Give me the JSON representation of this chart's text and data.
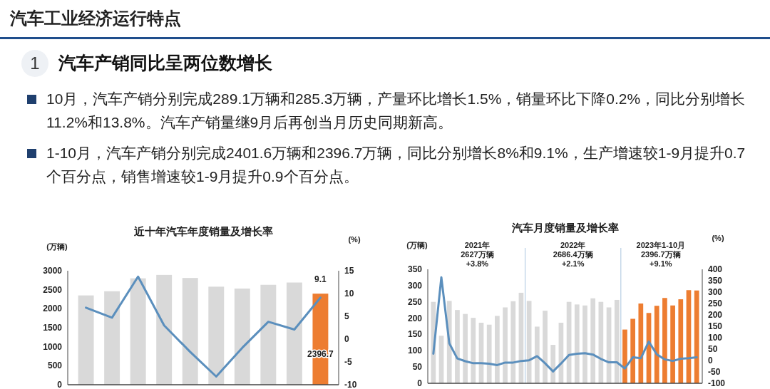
{
  "chart_data": [
    {
      "type": "bar",
      "title": "近十年汽车年度销量及增长率",
      "ylabel": "(万辆)",
      "y2label": "(%)",
      "annotations": [
        "汽车工业经济运行特点",
        "1",
        "汽车产销同比呈两位数增长",
        "10月，汽车产销分别完成289.1万辆和285.3万辆，产量环比增长1.5%，销量环比下降0.2%，同比分别增长11.2%和13.8%。汽车产销量继9月后再创当月历史同期新高。",
        "1-10月，汽车产销分别完成2401.6万辆和2396.7万辆，同比分别增长8%和9.1%，生产增速较1-9月提升0.7个百分点，销售增速较1-9月提升0.9个百分点。"
      ],
      "categories": [
        null,
        null,
        null,
        null,
        null,
        null,
        null,
        null,
        null,
        null
      ],
      "series": [
        {
          "colors": [
            "#d9d9d9",
            "#d9d9d9",
            "#d9d9d9",
            "#d9d9d9",
            "#d9d9d9",
            "#d9d9d9",
            "#d9d9d9",
            "#d9d9d9",
            "#d9d9d9",
            "#ed7d31"
          ],
          "values": [
            2350,
            2460,
            2800,
            2890,
            2810,
            2580,
            2530,
            2630,
            2690,
            2396.7
          ],
          "value_labels": [
            null,
            null,
            null,
            null,
            null,
            null,
            null,
            null,
            null,
            "2396.7"
          ]
        },
        {
          "type": "line",
          "axis": "y2",
          "color": "#5b8fbd",
          "values": [
            6.9,
            4.7,
            13.7,
            3.0,
            -2.8,
            -8.2,
            -1.9,
            3.8,
            2.1,
            9.1
          ],
          "value_labels": [
            null,
            null,
            null,
            null,
            null,
            null,
            null,
            null,
            null,
            "9.1"
          ]
        }
      ],
      "ylim": [
        0,
        3000
      ],
      "yticks": [
        0,
        500,
        1000,
        1500,
        2000,
        2500,
        3000
      ],
      "y2lim": [
        -10,
        15
      ],
      "y2ticks": [
        -10,
        -5,
        0,
        5,
        10,
        15
      ],
      "tick_labels": "y",
      "grid": false
    },
    {
      "type": "bar",
      "title": "汽车月度销量及增长率",
      "ylabel": "(万辆)",
      "y2label": "(%)",
      "annotations": [
        "2021年\n2627万辆\n+3.8%",
        "2022年\n2686.4万辆\n+2.1%",
        "2023年1-10月\n2396.7万辆\n+9.1%"
      ],
      "categories": [
        null,
        null,
        null,
        null,
        null,
        null,
        null,
        null,
        null,
        null,
        null,
        null,
        null,
        null,
        null,
        null,
        null,
        null,
        null,
        null,
        null,
        null,
        null,
        null,
        null,
        null,
        null,
        null,
        null,
        null,
        null,
        null,
        null,
        null
      ],
      "series": [
        {
          "colors": [
            "#d9d9d9",
            "#d9d9d9",
            "#d9d9d9",
            "#d9d9d9",
            "#d9d9d9",
            "#d9d9d9",
            "#d9d9d9",
            "#d9d9d9",
            "#d9d9d9",
            "#d9d9d9",
            "#d9d9d9",
            "#d9d9d9",
            "#d9d9d9",
            "#d9d9d9",
            "#d9d9d9",
            "#d9d9d9",
            "#d9d9d9",
            "#d9d9d9",
            "#d9d9d9",
            "#d9d9d9",
            "#d9d9d9",
            "#d9d9d9",
            "#d9d9d9",
            "#d9d9d9",
            "#ed7d31",
            "#ed7d31",
            "#ed7d31",
            "#ed7d31",
            "#ed7d31",
            "#ed7d31",
            "#ed7d31",
            "#ed7d31",
            "#ed7d31",
            "#ed7d31"
          ],
          "values": [
            250,
            146,
            253,
            225,
            213,
            201,
            186,
            180,
            207,
            233,
            252,
            278,
            253,
            174,
            223,
            118,
            186,
            250,
            242,
            239,
            261,
            250,
            233,
            256,
            165,
            198,
            245,
            216,
            238,
            262,
            239,
            258,
            286,
            285
          ]
        },
        {
          "type": "line",
          "axis": "y2",
          "color": "#5b8fbd",
          "values": [
            30,
            365,
            75,
            9,
            -3,
            -12,
            -12,
            -14,
            -20,
            -9,
            -9,
            -2,
            1,
            19,
            -12,
            -48,
            -13,
            24,
            30,
            32,
            26,
            7,
            -8,
            -8,
            -35,
            14,
            10,
            83,
            27,
            5,
            -2,
            8,
            10,
            14
          ]
        }
      ],
      "ylim": [
        0,
        350
      ],
      "yticks": [
        0,
        50,
        100,
        150,
        200,
        250,
        300,
        350
      ],
      "y2lim": [
        -100,
        400
      ],
      "y2ticks": [
        -100,
        -50,
        0,
        50,
        100,
        150,
        200,
        250,
        300,
        350,
        400
      ],
      "tick_labels": "y",
      "grid": false
    }
  ]
}
